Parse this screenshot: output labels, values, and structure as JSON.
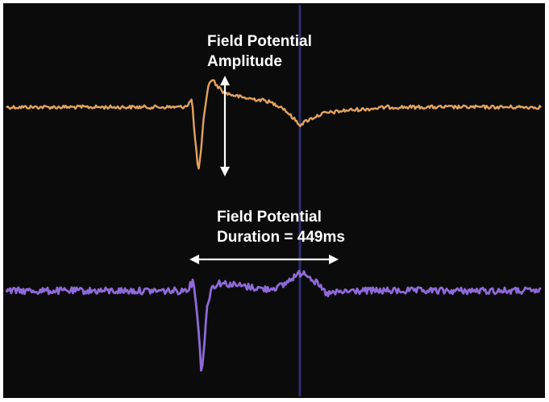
{
  "chart_data": {
    "type": "line",
    "title": "",
    "xlabel": "",
    "ylabel": "",
    "grid": false,
    "background": "#0b0b0b",
    "marker_color": "#2a2e6e",
    "series": [
      {
        "color": "#e3a35d",
        "trace": "upper"
      },
      {
        "color": "#8e6ad8",
        "trace": "lower"
      }
    ],
    "annotations": [
      {
        "kind": "vertical-arrow",
        "lines": [
          "Field Potential",
          "Amplitude"
        ]
      },
      {
        "kind": "horizontal-arrow",
        "lines": [
          "Field Potential",
          "Duration = 449ms"
        ],
        "duration_ms": 449
      }
    ]
  }
}
